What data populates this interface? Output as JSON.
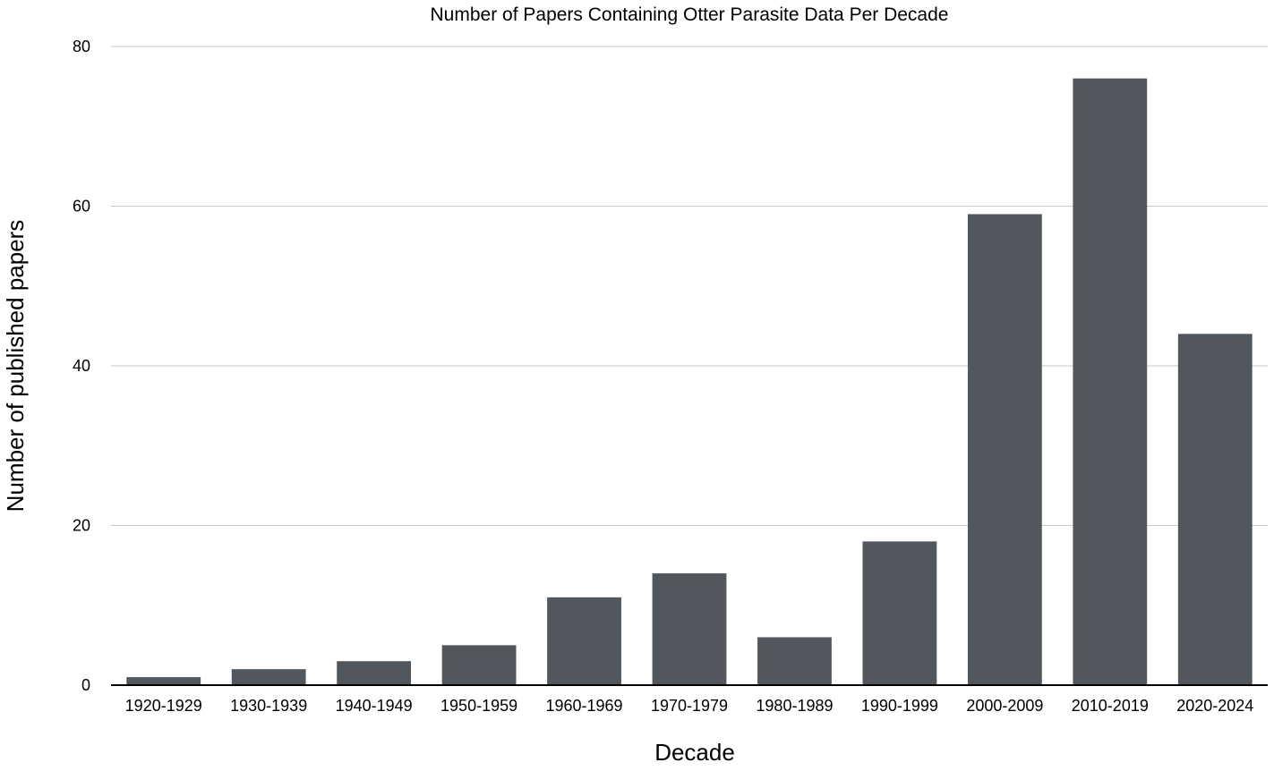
{
  "chart_data": {
    "type": "bar",
    "title": "Number of Papers Containing Otter Parasite Data Per Decade",
    "xlabel": "Decade",
    "ylabel": "Number of published papers",
    "categories": [
      "1920-1929",
      "1930-1939",
      "1940-1949",
      "1950-1959",
      "1960-1969",
      "1970-1979",
      "1980-1989",
      "1990-1999",
      "2000-2009",
      "2010-2019",
      "2020-2024"
    ],
    "values": [
      1,
      2,
      3,
      5,
      11,
      14,
      6,
      18,
      59,
      76,
      44
    ],
    "ylim": [
      0,
      80
    ],
    "yticks": [
      "0",
      "20",
      "40",
      "60",
      "80"
    ],
    "grid": true,
    "legend": "none",
    "bar_color": "#51575d"
  }
}
